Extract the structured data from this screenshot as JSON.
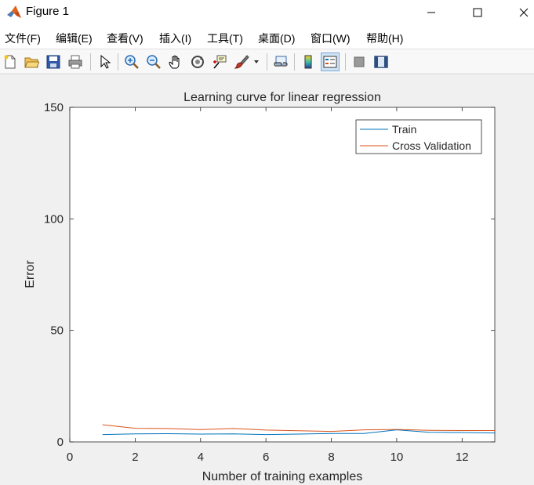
{
  "window": {
    "title": "Figure 1"
  },
  "menu": {
    "items": [
      "文件(F)",
      "编辑(E)",
      "查看(V)",
      "插入(I)",
      "工具(T)",
      "桌面(D)",
      "窗口(W)",
      "帮助(H)"
    ]
  },
  "toolbar": {
    "buttons": [
      {
        "name": "new-figure-icon"
      },
      {
        "name": "open-file-icon"
      },
      {
        "name": "save-icon"
      },
      {
        "name": "print-icon"
      },
      {
        "name": "edit-plot-pointer-icon"
      },
      {
        "name": "zoom-in-icon"
      },
      {
        "name": "zoom-out-icon"
      },
      {
        "name": "pan-hand-icon"
      },
      {
        "name": "rotate-3d-icon"
      },
      {
        "name": "data-cursor-icon"
      },
      {
        "name": "brush-icon"
      },
      {
        "name": "link-plot-icon"
      },
      {
        "name": "insert-colorbar-icon"
      },
      {
        "name": "insert-legend-icon"
      },
      {
        "name": "hide-plot-tools-icon"
      },
      {
        "name": "show-plot-tools-icon"
      }
    ]
  },
  "chart_data": {
    "type": "line",
    "title": "Learning curve for linear regression",
    "xlabel": "Number of training examples",
    "ylabel": "Error",
    "xlim": [
      0,
      13
    ],
    "ylim": [
      0,
      150
    ],
    "xticks": [
      0,
      2,
      4,
      6,
      8,
      10,
      12
    ],
    "yticks": [
      0,
      50,
      100,
      150
    ],
    "grid": false,
    "legend_position": "top-right",
    "series": [
      {
        "name": "Train",
        "color": "#0072BD",
        "x": [
          1,
          2,
          3,
          4,
          5,
          6,
          7,
          8,
          9,
          10,
          11,
          12,
          13
        ],
        "y": [
          3.3,
          3.6,
          3.7,
          3.5,
          3.6,
          3.3,
          3.5,
          3.8,
          3.8,
          5.4,
          4.3,
          4.2,
          4.0
        ]
      },
      {
        "name": "Cross Validation",
        "color": "#D95319",
        "x": [
          1,
          2,
          3,
          4,
          5,
          6,
          7,
          8,
          9,
          10,
          11,
          12,
          13
        ],
        "y": [
          7.7,
          6.1,
          6.0,
          5.5,
          6.0,
          5.3,
          5.0,
          4.7,
          5.4,
          5.6,
          5.2,
          5.1,
          5.1
        ]
      }
    ]
  }
}
